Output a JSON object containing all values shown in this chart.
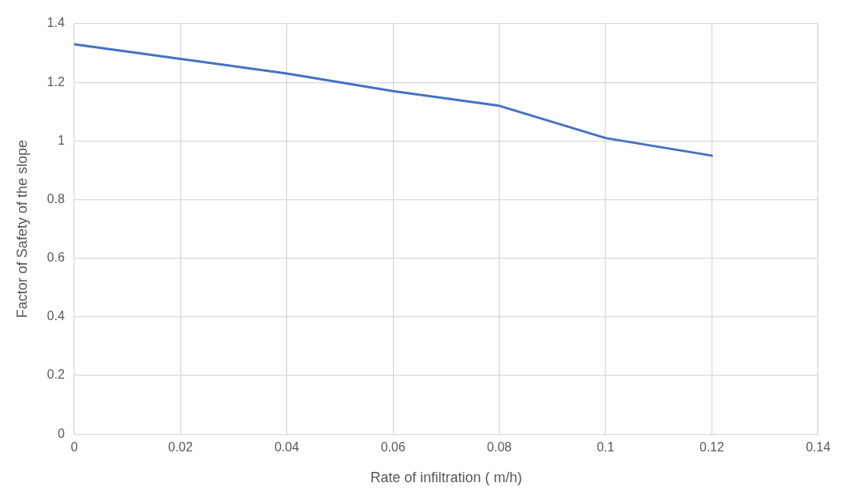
{
  "chart_data": {
    "type": "line",
    "xlabel": "Rate of infiltration ( m/h)",
    "ylabel": "Factor of Safety of the slope",
    "x": [
      0,
      0.02,
      0.04,
      0.06,
      0.08,
      0.1,
      0.12
    ],
    "series": [
      {
        "color": "#4472c4",
        "values": [
          1.33,
          1.28,
          1.23,
          1.17,
          1.12,
          1.01,
          0.95
        ]
      }
    ],
    "xlim": [
      0,
      0.14
    ],
    "ylim": [
      0,
      1.4
    ],
    "xticks": [
      0,
      0.02,
      0.04,
      0.06,
      0.08,
      0.1,
      0.12,
      0.14
    ],
    "yticks": [
      0,
      0.2,
      0.4,
      0.6,
      0.8,
      1,
      1.2,
      1.4
    ],
    "grid": true,
    "marker": "none"
  }
}
